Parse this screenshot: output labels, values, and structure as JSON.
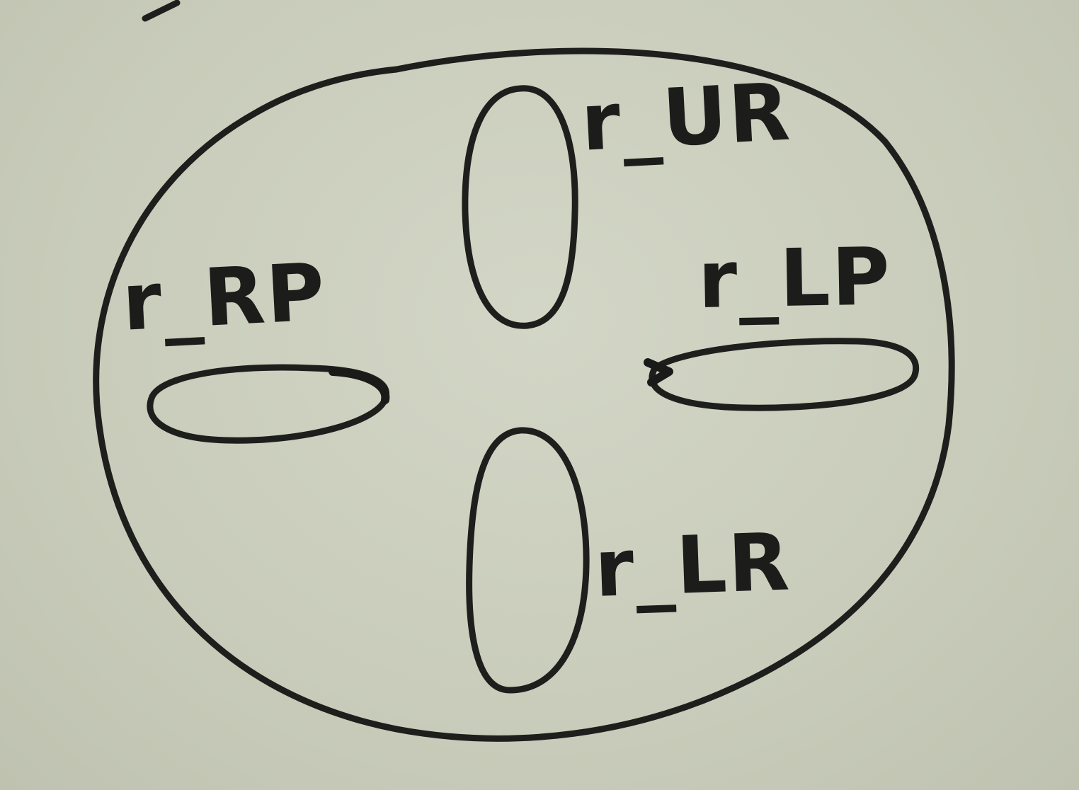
{
  "diagram": {
    "labels": {
      "top": "r_UR",
      "left": "r_RP",
      "right": "r_LP",
      "bottom": "r_LR"
    }
  }
}
